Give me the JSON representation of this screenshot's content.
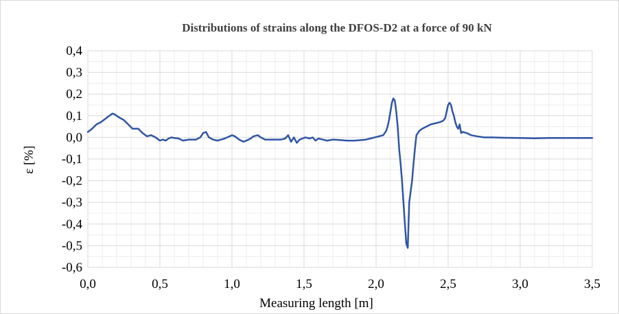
{
  "chart_data": {
    "type": "line",
    "title": "Distributions of strains along the DFOS-D2 at a force of 90 kN",
    "xlabel": "Measuring length [m]",
    "ylabel": "ε [%]",
    "xlim": [
      0.0,
      3.5
    ],
    "ylim": [
      -0.6,
      0.4
    ],
    "x_ticks": [
      "0,0",
      "0,5",
      "1,0",
      "1,5",
      "2,0",
      "2,5",
      "3,0",
      "3,5"
    ],
    "y_ticks": [
      "0,4",
      "0,3",
      "0,2",
      "0,1",
      "0,0",
      "-0,1",
      "-0,2",
      "-0,3",
      "-0,4",
      "-0,5",
      "-0,6"
    ],
    "grid": true,
    "legend": "none",
    "series": [
      {
        "color": "#2f55a4",
        "x": [
          0.0,
          0.03,
          0.06,
          0.09,
          0.12,
          0.15,
          0.17,
          0.19,
          0.21,
          0.25,
          0.28,
          0.31,
          0.35,
          0.38,
          0.41,
          0.44,
          0.47,
          0.5,
          0.52,
          0.54,
          0.56,
          0.58,
          0.6,
          0.63,
          0.66,
          0.7,
          0.75,
          0.78,
          0.8,
          0.82,
          0.84,
          0.87,
          0.9,
          0.95,
          1.0,
          1.02,
          1.05,
          1.08,
          1.1,
          1.13,
          1.15,
          1.18,
          1.2,
          1.23,
          1.26,
          1.3,
          1.34,
          1.37,
          1.39,
          1.41,
          1.43,
          1.45,
          1.47,
          1.49,
          1.51,
          1.54,
          1.56,
          1.58,
          1.6,
          1.63,
          1.66,
          1.7,
          1.75,
          1.8,
          1.85,
          1.9,
          1.93,
          1.96,
          1.99,
          2.02,
          2.05,
          2.07,
          2.08,
          2.09,
          2.1,
          2.11,
          2.12,
          2.13,
          2.14,
          2.15,
          2.16,
          2.17,
          2.18,
          2.19,
          2.2,
          2.21,
          2.22,
          2.23,
          2.24,
          2.25,
          2.26,
          2.27,
          2.28,
          2.3,
          2.32,
          2.35,
          2.38,
          2.41,
          2.44,
          2.46,
          2.47,
          2.48,
          2.49,
          2.5,
          2.51,
          2.52,
          2.53,
          2.54,
          2.55,
          2.56,
          2.57,
          2.58,
          2.59,
          2.6,
          2.63,
          2.66,
          2.7,
          2.75,
          2.8,
          2.9,
          3.0,
          3.1,
          3.2,
          3.3,
          3.4,
          3.5
        ],
        "values": [
          0.025,
          0.04,
          0.06,
          0.07,
          0.085,
          0.1,
          0.11,
          0.105,
          0.095,
          0.08,
          0.06,
          0.04,
          0.04,
          0.02,
          0.005,
          0.01,
          0.0,
          -0.015,
          -0.01,
          -0.015,
          -0.005,
          0.0,
          -0.003,
          -0.005,
          -0.015,
          -0.01,
          -0.01,
          0.0,
          0.02,
          0.025,
          0.0,
          -0.01,
          -0.015,
          -0.005,
          0.01,
          0.005,
          -0.01,
          -0.02,
          -0.015,
          -0.005,
          0.005,
          0.01,
          0.0,
          -0.01,
          -0.01,
          -0.01,
          -0.01,
          -0.005,
          0.01,
          -0.02,
          0.0,
          -0.025,
          -0.01,
          -0.005,
          0.0,
          -0.005,
          0.0,
          -0.015,
          -0.005,
          -0.01,
          -0.015,
          -0.01,
          -0.012,
          -0.015,
          -0.015,
          -0.012,
          -0.01,
          -0.005,
          0.0,
          0.005,
          0.01,
          0.03,
          0.05,
          0.08,
          0.12,
          0.16,
          0.18,
          0.17,
          0.12,
          0.05,
          -0.05,
          -0.12,
          -0.2,
          -0.3,
          -0.4,
          -0.49,
          -0.51,
          -0.3,
          -0.25,
          -0.2,
          -0.12,
          -0.05,
          0.01,
          0.03,
          0.04,
          0.05,
          0.06,
          0.065,
          0.07,
          0.075,
          0.08,
          0.09,
          0.12,
          0.15,
          0.16,
          0.15,
          0.12,
          0.1,
          0.07,
          0.05,
          0.04,
          0.06,
          0.02,
          0.025,
          0.02,
          0.01,
          0.005,
          0.0,
          0.0,
          -0.002,
          -0.003,
          -0.004,
          -0.003,
          -0.003,
          -0.003,
          -0.003
        ]
      }
    ]
  }
}
